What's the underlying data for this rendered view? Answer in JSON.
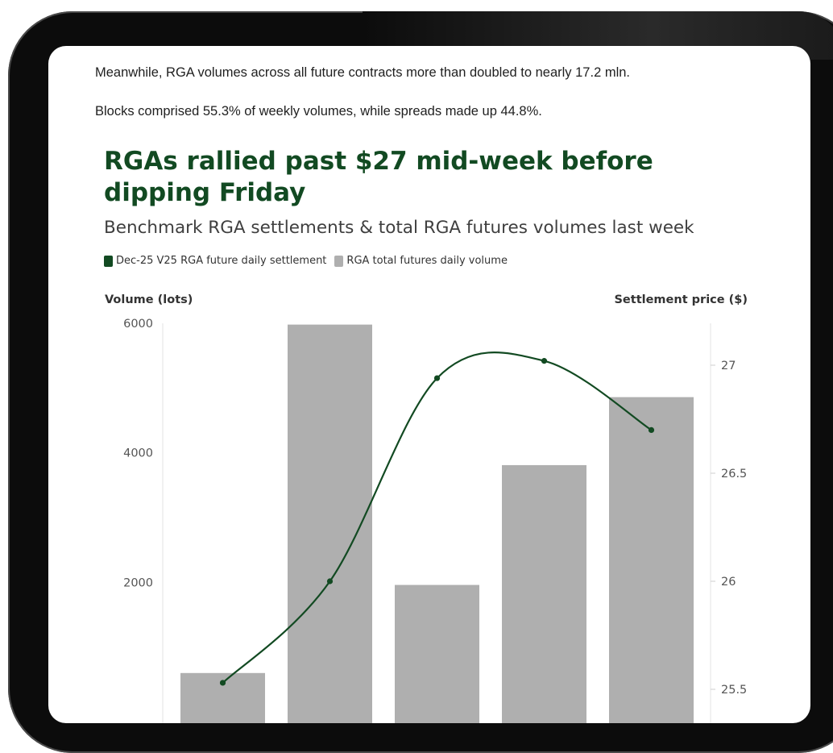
{
  "article": {
    "paragraph_1": "Meanwhile, RGA volumes across all future contracts more than doubled to nearly 17.2 mln.",
    "paragraph_2": "Blocks comprised 55.3% of weekly volumes, while spreads made up 44.8%."
  },
  "colors": {
    "settlement_line": "#124a22",
    "volume_bars": "#afafaf",
    "title": "#124a22"
  },
  "chart_data": {
    "type": "bar",
    "title": "RGAs rallied past $27 mid-week before dipping Friday",
    "subtitle": "Benchmark RGA settlements & total RGA futures volumes last week",
    "legend": [
      "Dec-25 V25 RGA future daily settlement",
      "RGA total futures daily volume"
    ],
    "ylabel_left": "Volume (lots)",
    "ylabel_right": "Settlement price ($)",
    "ylim_left": [
      0,
      6000
    ],
    "ylim_right": [
      25.4,
      27.2
    ],
    "yticks_left": [
      "6000",
      "4000",
      "2000"
    ],
    "yticks_right": [
      "27",
      "26.5",
      "26",
      "25.5"
    ],
    "series": [
      {
        "name": "RGA total futures daily volume",
        "type": "bar",
        "axis": "left",
        "values": [
          600,
          5980,
          1960,
          3810,
          4860
        ]
      },
      {
        "name": "Dec-25 V25 RGA future daily settlement",
        "type": "line",
        "axis": "right",
        "values": [
          25.53,
          26.0,
          26.94,
          27.02,
          26.7
        ]
      }
    ],
    "grid": false
  }
}
